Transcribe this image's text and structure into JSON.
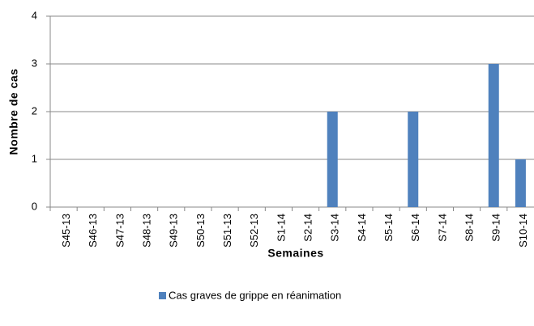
{
  "chart_data": {
    "type": "bar",
    "y_label": "Nombre de cas",
    "x_label": "Semaines",
    "categories": [
      "S45-13",
      "S46-13",
      "S47-13",
      "S48-13",
      "S49-13",
      "S50-13",
      "S51-13",
      "S52-13",
      "S1-14",
      "S2-14",
      "S3-14",
      "S4-14",
      "S5-14",
      "S6-14",
      "S7-14",
      "S8-14",
      "S9-14",
      "S10-14"
    ],
    "series": [
      {
        "name": "Cas graves de grippe en réanimation",
        "color": "#4f81bd",
        "values": [
          0,
          0,
          0,
          0,
          0,
          0,
          0,
          0,
          0,
          0,
          2,
          0,
          0,
          2,
          0,
          0,
          3,
          1
        ]
      }
    ],
    "ylim": [
      0,
      4
    ],
    "yticks": [
      0,
      1,
      2,
      3,
      4
    ],
    "grid": true,
    "legend": "bottom"
  }
}
